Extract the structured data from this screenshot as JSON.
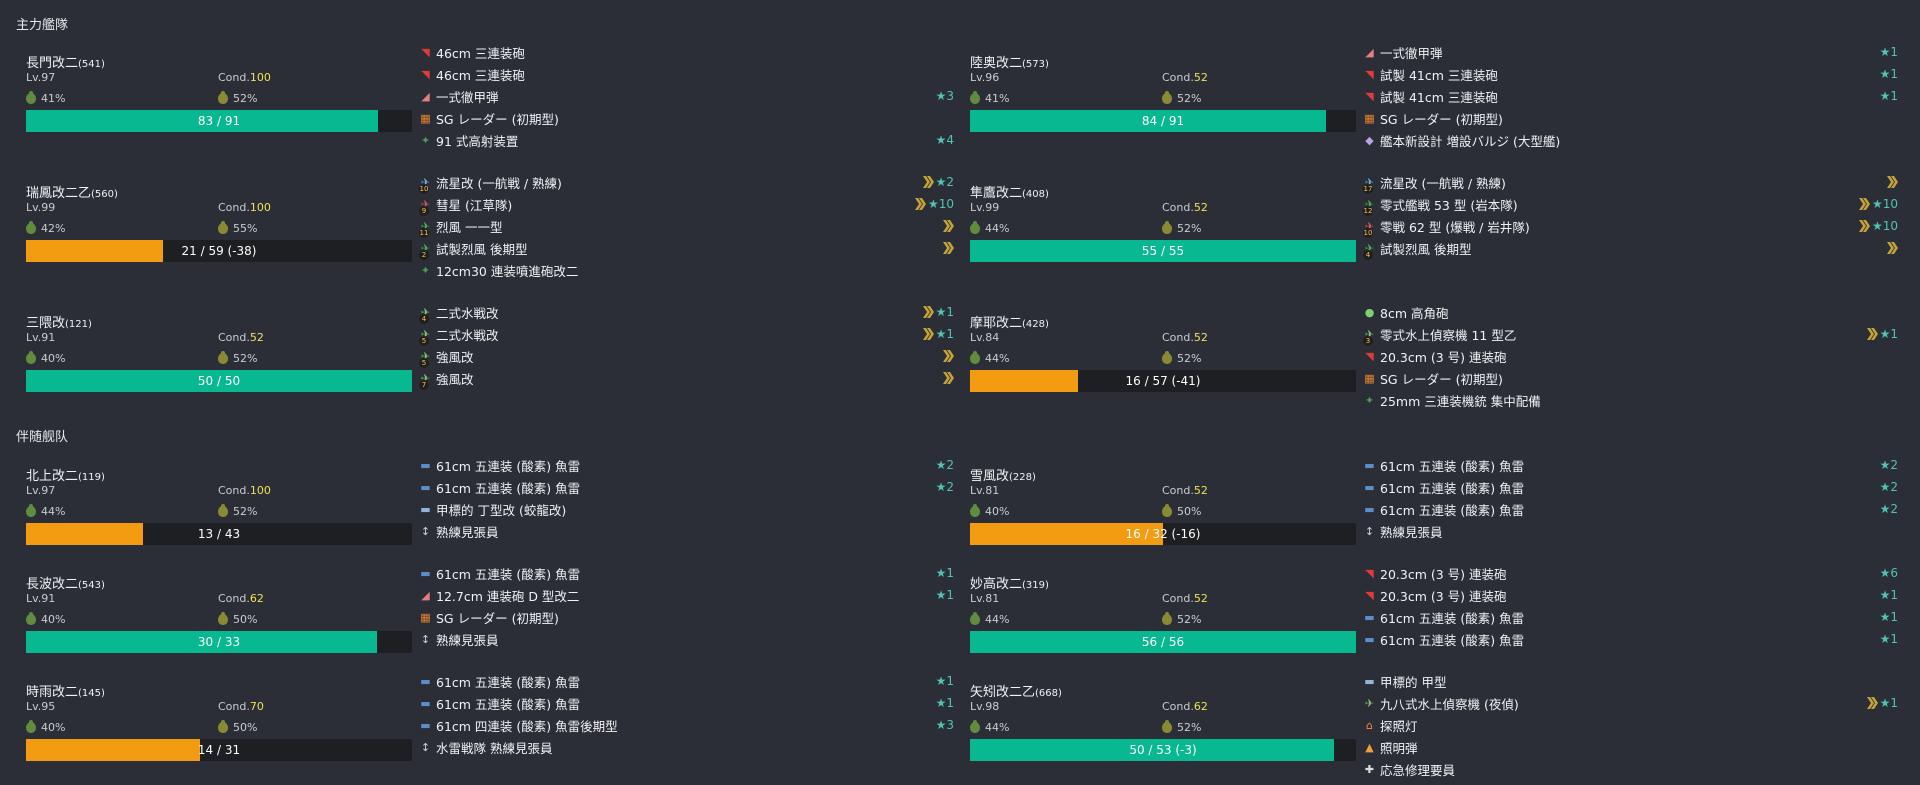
{
  "colors": {
    "background": "#2b2e36",
    "hp_green": "#08b891",
    "hp_orange": "#f39c12",
    "cond_yellow": "#eee056",
    "star_teal": "#4fc3b4",
    "prof_gold": "#c6a339"
  },
  "icon_colors": {
    "gun-red": "#e03a3a",
    "shell-red": "#e87e7e",
    "radar": "#e6842a",
    "aa-gun": "#4d9a5a",
    "plane-blue": "#6aa8d8",
    "plane-red": "#d9534f",
    "plane-green": "#4caf50",
    "seaplane": "#7ec26e",
    "torpedo": "#5b8fc8",
    "sub-boat": "#8fb5d8",
    "lookout": "#d0d0d0",
    "bulge": "#b8a3e6",
    "small-gun": "#7fd06f",
    "searchlight": "#ff8a3d",
    "flare": "#f59d3a",
    "repair": "#dddddd"
  },
  "fleets": [
    {
      "title": "主力艦隊",
      "ships": [
        {
          "name": "長門改二",
          "id": "(541)",
          "lv": "Lv.97",
          "cond_label": "Cond.",
          "cond": "100",
          "fuel": "41%",
          "ammo": "52%",
          "hp_text": "83 / 91",
          "hp_ratio": 0.912,
          "hp_color": "green",
          "equips": [
            {
              "name": "46cm 三連装砲",
              "icon": "gun-red",
              "slot": "",
              "prof": false,
              "star": ""
            },
            {
              "name": "46cm 三連装砲",
              "icon": "gun-red",
              "slot": "",
              "prof": false,
              "star": ""
            },
            {
              "name": "一式徹甲弾",
              "icon": "shell-red",
              "slot": "",
              "prof": false,
              "star": "★3"
            },
            {
              "name": "SG レーダー (初期型)",
              "icon": "radar",
              "slot": "",
              "prof": false,
              "star": ""
            },
            {
              "name": "91 式高射装置",
              "icon": "aa-gun",
              "slot": "",
              "prof": false,
              "star": "★4"
            }
          ]
        },
        {
          "name": "陸奥改二",
          "id": "(573)",
          "lv": "Lv.96",
          "cond_label": "Cond.",
          "cond": "52",
          "fuel": "41%",
          "ammo": "52%",
          "hp_text": "84 / 91",
          "hp_ratio": 0.923,
          "hp_color": "green",
          "equips": [
            {
              "name": "一式徹甲弾",
              "icon": "shell-red",
              "slot": "",
              "prof": false,
              "star": "★1"
            },
            {
              "name": "試製 41cm 三連装砲",
              "icon": "gun-red",
              "slot": "",
              "prof": false,
              "star": "★1"
            },
            {
              "name": "試製 41cm 三連装砲",
              "icon": "gun-red",
              "slot": "",
              "prof": false,
              "star": "★1"
            },
            {
              "name": "SG レーダー (初期型)",
              "icon": "radar",
              "slot": "",
              "prof": false,
              "star": ""
            },
            {
              "name": "艦本新設計 増設バルジ (大型艦)",
              "icon": "bulge",
              "slot": "",
              "prof": false,
              "star": ""
            }
          ]
        },
        {
          "name": "瑞鳳改二乙",
          "id": "(560)",
          "lv": "Lv.99",
          "cond_label": "Cond.",
          "cond": "100",
          "fuel": "42%",
          "ammo": "55%",
          "hp_text": "21 / 59 (-38)",
          "hp_ratio": 0.356,
          "hp_color": "orange",
          "equips": [
            {
              "name": "流星改 (一航戦 / 熟練)",
              "icon": "plane-blue",
              "slot": "10",
              "prof": true,
              "star": "★2"
            },
            {
              "name": "彗星 (江草隊)",
              "icon": "plane-red",
              "slot": "9",
              "prof": true,
              "star": "★10"
            },
            {
              "name": "烈風 一一型",
              "icon": "plane-green",
              "slot": "11",
              "prof": true,
              "star": ""
            },
            {
              "name": "試製烈風 後期型",
              "icon": "plane-green",
              "slot": "2",
              "prof": true,
              "star": ""
            },
            {
              "name": "12cm30 連装噴進砲改二",
              "icon": "aa-gun",
              "slot": "",
              "prof": false,
              "star": ""
            }
          ]
        },
        {
          "name": "隼鷹改二",
          "id": "(408)",
          "lv": "Lv.99",
          "cond_label": "Cond.",
          "cond": "52",
          "fuel": "44%",
          "ammo": "52%",
          "hp_text": "55 / 55",
          "hp_ratio": 1.0,
          "hp_color": "green",
          "equips": [
            {
              "name": "流星改 (一航戦 / 熟練)",
              "icon": "plane-blue",
              "slot": "17",
              "prof": true,
              "star": ""
            },
            {
              "name": "零式艦戦 53 型 (岩本隊)",
              "icon": "plane-green",
              "slot": "12",
              "prof": true,
              "star": "★10"
            },
            {
              "name": "零戦 62 型 (爆戦 / 岩井隊)",
              "icon": "plane-red",
              "slot": "10",
              "prof": true,
              "star": "★10"
            },
            {
              "name": "試製烈風 後期型",
              "icon": "plane-green",
              "slot": "4",
              "prof": true,
              "star": ""
            }
          ]
        },
        {
          "name": "三隈改",
          "id": "(121)",
          "lv": "Lv.91",
          "cond_label": "Cond.",
          "cond": "52",
          "fuel": "40%",
          "ammo": "52%",
          "hp_text": "50 / 50",
          "hp_ratio": 1.0,
          "hp_color": "green",
          "equips": [
            {
              "name": "二式水戦改",
              "icon": "seaplane",
              "slot": "4",
              "prof": true,
              "star": "★1"
            },
            {
              "name": "二式水戦改",
              "icon": "seaplane",
              "slot": "5",
              "prof": true,
              "star": "★1"
            },
            {
              "name": "強風改",
              "icon": "seaplane",
              "slot": "5",
              "prof": true,
              "star": ""
            },
            {
              "name": "強風改",
              "icon": "seaplane",
              "slot": "7",
              "prof": true,
              "star": ""
            }
          ]
        },
        {
          "name": "摩耶改二",
          "id": "(428)",
          "lv": "Lv.84",
          "cond_label": "Cond.",
          "cond": "52",
          "fuel": "44%",
          "ammo": "52%",
          "hp_text": "16 / 57 (-41)",
          "hp_ratio": 0.281,
          "hp_color": "orange",
          "equips": [
            {
              "name": "8cm 高角砲",
              "icon": "small-gun",
              "slot": "",
              "prof": false,
              "star": ""
            },
            {
              "name": "零式水上偵察機 11 型乙",
              "icon": "seaplane",
              "slot": "3",
              "prof": true,
              "star": "★1"
            },
            {
              "name": "20.3cm (3 号) 連装砲",
              "icon": "gun-red",
              "slot": "",
              "prof": false,
              "star": ""
            },
            {
              "name": "SG レーダー (初期型)",
              "icon": "radar",
              "slot": "",
              "prof": false,
              "star": ""
            },
            {
              "name": "25mm 三連装機銃 集中配備",
              "icon": "aa-gun",
              "slot": "",
              "prof": false,
              "star": ""
            }
          ]
        }
      ]
    },
    {
      "title": "伴随舰队",
      "ships": [
        {
          "name": "北上改二",
          "id": "(119)",
          "lv": "Lv.97",
          "cond_label": "Cond.",
          "cond": "100",
          "fuel": "44%",
          "ammo": "52%",
          "hp_text": "13 / 43",
          "hp_ratio": 0.302,
          "hp_color": "orange",
          "equips": [
            {
              "name": "61cm 五連装 (酸素) 魚雷",
              "icon": "torpedo",
              "slot": "",
              "prof": false,
              "star": "★2"
            },
            {
              "name": "61cm 五連装 (酸素) 魚雷",
              "icon": "torpedo",
              "slot": "",
              "prof": false,
              "star": "★2"
            },
            {
              "name": "甲標的 丁型改 (蛟龍改)",
              "icon": "sub-boat",
              "slot": "",
              "prof": false,
              "star": ""
            },
            {
              "name": "熟練見張員",
              "icon": "lookout",
              "slot": "",
              "prof": false,
              "star": ""
            }
          ]
        },
        {
          "name": "雪風改",
          "id": "(228)",
          "lv": "Lv.81",
          "cond_label": "Cond.",
          "cond": "52",
          "fuel": "40%",
          "ammo": "50%",
          "hp_text": "16 / 32 (-16)",
          "hp_ratio": 0.5,
          "hp_color": "orange",
          "equips": [
            {
              "name": "61cm 五連装 (酸素) 魚雷",
              "icon": "torpedo",
              "slot": "",
              "prof": false,
              "star": "★2"
            },
            {
              "name": "61cm 五連装 (酸素) 魚雷",
              "icon": "torpedo",
              "slot": "",
              "prof": false,
              "star": "★2"
            },
            {
              "name": "61cm 五連装 (酸素) 魚雷",
              "icon": "torpedo",
              "slot": "",
              "prof": false,
              "star": "★2"
            },
            {
              "name": "熟練見張員",
              "icon": "lookout",
              "slot": "",
              "prof": false,
              "star": ""
            }
          ]
        },
        {
          "name": "長波改二",
          "id": "(543)",
          "lv": "Lv.91",
          "cond_label": "Cond.",
          "cond": "62",
          "fuel": "40%",
          "ammo": "50%",
          "hp_text": "30 / 33",
          "hp_ratio": 0.909,
          "hp_color": "green",
          "equips": [
            {
              "name": "61cm 五連装 (酸素) 魚雷",
              "icon": "torpedo",
              "slot": "",
              "prof": false,
              "star": "★1"
            },
            {
              "name": "12.7cm 連装砲 D 型改二",
              "icon": "shell-red",
              "slot": "",
              "prof": false,
              "star": "★1"
            },
            {
              "name": "SG レーダー (初期型)",
              "icon": "radar",
              "slot": "",
              "prof": false,
              "star": ""
            },
            {
              "name": "熟練見張員",
              "icon": "lookout",
              "slot": "",
              "prof": false,
              "star": ""
            }
          ]
        },
        {
          "name": "妙高改二",
          "id": "(319)",
          "lv": "Lv.81",
          "cond_label": "Cond.",
          "cond": "52",
          "fuel": "44%",
          "ammo": "52%",
          "hp_text": "56 / 56",
          "hp_ratio": 1.0,
          "hp_color": "green",
          "equips": [
            {
              "name": "20.3cm (3 号) 連装砲",
              "icon": "gun-red",
              "slot": "",
              "prof": false,
              "star": "★6"
            },
            {
              "name": "20.3cm (3 号) 連装砲",
              "icon": "gun-red",
              "slot": "",
              "prof": false,
              "star": "★1"
            },
            {
              "name": "61cm 五連装 (酸素) 魚雷",
              "icon": "torpedo",
              "slot": "",
              "prof": false,
              "star": "★1"
            },
            {
              "name": "61cm 五連装 (酸素) 魚雷",
              "icon": "torpedo",
              "slot": "",
              "prof": false,
              "star": "★1"
            }
          ]
        },
        {
          "name": "時雨改二",
          "id": "(145)",
          "lv": "Lv.95",
          "cond_label": "Cond.",
          "cond": "70",
          "fuel": "40%",
          "ammo": "50%",
          "hp_text": "14 / 31",
          "hp_ratio": 0.452,
          "hp_color": "orange",
          "equips": [
            {
              "name": "61cm 五連装 (酸素) 魚雷",
              "icon": "torpedo",
              "slot": "",
              "prof": false,
              "star": "★1"
            },
            {
              "name": "61cm 五連装 (酸素) 魚雷",
              "icon": "torpedo",
              "slot": "",
              "prof": false,
              "star": "★1"
            },
            {
              "name": "61cm 四連装 (酸素) 魚雷後期型",
              "icon": "torpedo",
              "slot": "",
              "prof": false,
              "star": "★3"
            },
            {
              "name": "水雷戦隊 熟練見張員",
              "icon": "lookout",
              "slot": "",
              "prof": false,
              "star": ""
            }
          ]
        },
        {
          "name": "矢矧改二乙",
          "id": "(668)",
          "lv": "Lv.98",
          "cond_label": "Cond.",
          "cond": "62",
          "fuel": "44%",
          "ammo": "52%",
          "hp_text": "50 / 53 (-3)",
          "hp_ratio": 0.943,
          "hp_color": "green",
          "equips": [
            {
              "name": "甲標的 甲型",
              "icon": "sub-boat",
              "slot": "",
              "prof": false,
              "star": ""
            },
            {
              "name": "九八式水上偵察機 (夜偵)",
              "icon": "seaplane",
              "slot": "",
              "prof": true,
              "star": "★1"
            },
            {
              "name": "探照灯",
              "icon": "searchlight",
              "slot": "",
              "prof": false,
              "star": ""
            },
            {
              "name": "照明弾",
              "icon": "flare",
              "slot": "",
              "prof": false,
              "star": ""
            },
            {
              "name": "応急修理要員",
              "icon": "repair",
              "slot": "",
              "prof": false,
              "star": ""
            }
          ]
        }
      ]
    }
  ]
}
